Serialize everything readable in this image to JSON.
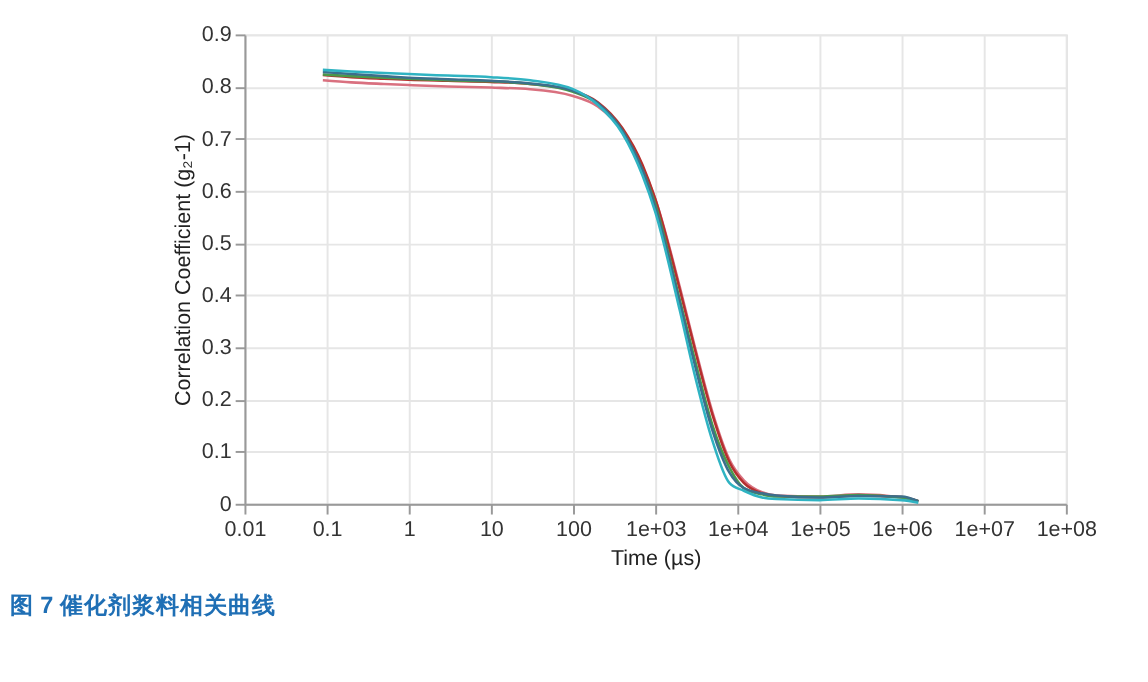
{
  "chart_data": {
    "type": "line",
    "title": "图 7 催化剂浆料相关曲线",
    "xlabel": "Time (µs)",
    "ylabel": "Correlation Coefficient (g₂-1)",
    "log": "x",
    "grid": true,
    "legend": false,
    "line_style": "solid",
    "marker": "none",
    "xlim": [
      0.01,
      100000000
    ],
    "ylim": [
      0,
      0.9
    ],
    "xticks": [
      0.01,
      0.1,
      1,
      10,
      100,
      {
        "value": 1000,
        "label": "1e+03"
      },
      {
        "value": 10000,
        "label": "1e+04"
      },
      {
        "value": 100000,
        "label": "1e+05"
      },
      {
        "value": 1000000,
        "label": "1e+06"
      },
      {
        "value": 10000000,
        "label": "1e+07"
      },
      {
        "value": 100000000,
        "label": "1e+08"
      }
    ],
    "yticks": [
      0,
      0.1,
      0.2,
      0.3,
      0.4,
      0.5,
      0.6,
      0.7,
      0.8,
      0.9
    ],
    "x": [
      0.09,
      0.2,
      0.5,
      1,
      3,
      10,
      30,
      100,
      200,
      400,
      700,
      1000,
      2000,
      3000,
      5000,
      8000,
      12000,
      20000,
      30000,
      100000,
      300000,
      1000000,
      1600000
    ],
    "series": [
      {
        "color": "#2fb3c2",
        "values": [
          0.832,
          0.829,
          0.826,
          0.824,
          0.821,
          0.818,
          0.812,
          0.795,
          0.765,
          0.71,
          0.63,
          0.56,
          0.37,
          0.25,
          0.12,
          0.04,
          0.025,
          0.012,
          0.009,
          0.007,
          0.01,
          0.007,
          0.002
        ]
      },
      {
        "color": "#3c6f8c",
        "values": [
          0.828,
          0.824,
          0.82,
          0.817,
          0.814,
          0.811,
          0.806,
          0.792,
          0.768,
          0.715,
          0.64,
          0.57,
          0.385,
          0.27,
          0.14,
          0.06,
          0.03,
          0.02,
          0.016,
          0.012,
          0.015,
          0.014,
          0.005
        ]
      },
      {
        "color": "#4a9a4a",
        "values": [
          0.823,
          0.82,
          0.817,
          0.815,
          0.812,
          0.81,
          0.805,
          0.79,
          0.767,
          0.715,
          0.64,
          0.575,
          0.39,
          0.28,
          0.15,
          0.07,
          0.03,
          0.018,
          0.014,
          0.014,
          0.017,
          0.012,
          0.005
        ]
      },
      {
        "color": "#b5302f",
        "values": [
          0.822,
          0.818,
          0.815,
          0.813,
          0.811,
          0.809,
          0.805,
          0.792,
          0.77,
          0.72,
          0.65,
          0.585,
          0.41,
          0.3,
          0.17,
          0.08,
          0.04,
          0.02,
          0.015,
          0.012,
          0.016,
          0.013,
          0.005
        ]
      },
      {
        "color": "#d9707f",
        "values": [
          0.812,
          0.808,
          0.805,
          0.803,
          0.8,
          0.798,
          0.795,
          0.782,
          0.762,
          0.715,
          0.645,
          0.585,
          0.415,
          0.305,
          0.175,
          0.085,
          0.045,
          0.022,
          0.016,
          0.014,
          0.018,
          0.012,
          0.005
        ]
      }
    ]
  }
}
